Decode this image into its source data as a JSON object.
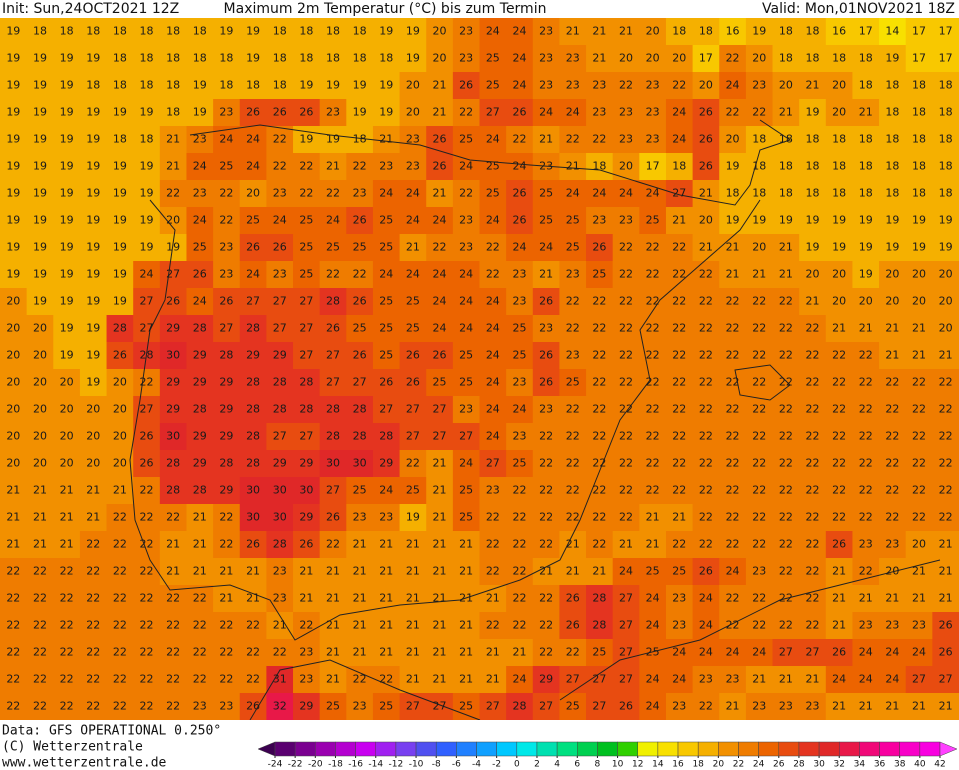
{
  "header": {
    "init": "Init: Sun,24OCT2021 12Z",
    "title": "Maximum 2m Temperatur (°C) bis zum Termin",
    "valid": "Valid: Mon,01NOV2021 18Z"
  },
  "footer": {
    "data": "Data: GFS OPERATIONAL 0.250°",
    "copyright": "(C) Wetterzentrale",
    "url": "www.wetterzentrale.de"
  },
  "map": {
    "rows": [
      [
        19,
        18,
        18,
        18,
        18,
        18,
        18,
        18,
        19,
        19,
        18,
        18,
        18,
        18,
        19,
        19,
        20,
        23,
        24,
        24,
        23,
        21,
        21,
        21,
        20,
        18,
        18,
        16,
        19,
        18,
        18,
        16,
        17,
        14,
        17,
        17
      ],
      [
        19,
        19,
        19,
        19,
        18,
        18,
        18,
        18,
        18,
        19,
        18,
        18,
        18,
        18,
        18,
        19,
        20,
        23,
        25,
        24,
        23,
        23,
        21,
        20,
        20,
        20,
        17,
        22,
        20,
        18,
        18,
        18,
        18,
        19,
        17,
        17
      ],
      [
        19,
        19,
        19,
        18,
        18,
        18,
        18,
        19,
        18,
        18,
        18,
        19,
        19,
        19,
        19,
        20,
        21,
        26,
        25,
        24,
        23,
        23,
        23,
        22,
        23,
        22,
        20,
        24,
        23,
        20,
        21,
        20,
        18,
        18,
        18,
        18
      ],
      [
        19,
        19,
        19,
        19,
        19,
        19,
        18,
        19,
        23,
        26,
        26,
        26,
        23,
        19,
        19,
        20,
        21,
        22,
        27,
        26,
        24,
        24,
        23,
        23,
        23,
        24,
        26,
        22,
        22,
        21,
        19,
        20,
        21,
        18,
        18,
        18
      ],
      [
        19,
        19,
        19,
        19,
        18,
        18,
        21,
        23,
        24,
        24,
        22,
        19,
        19,
        18,
        21,
        23,
        26,
        25,
        24,
        22,
        21,
        22,
        22,
        23,
        23,
        24,
        26,
        20,
        18,
        18,
        18,
        18,
        18,
        18,
        18,
        18
      ],
      [
        19,
        19,
        19,
        19,
        19,
        19,
        21,
        24,
        25,
        24,
        22,
        22,
        21,
        22,
        23,
        23,
        26,
        24,
        25,
        24,
        23,
        21,
        18,
        20,
        17,
        18,
        26,
        19,
        18,
        18,
        18,
        18,
        18,
        18,
        18,
        18
      ],
      [
        19,
        19,
        19,
        19,
        19,
        19,
        22,
        23,
        22,
        20,
        23,
        22,
        22,
        23,
        24,
        24,
        21,
        22,
        25,
        26,
        25,
        24,
        24,
        24,
        24,
        27,
        21,
        18,
        18,
        18,
        18,
        18,
        18,
        18,
        18,
        18
      ],
      [
        19,
        19,
        19,
        19,
        19,
        19,
        20,
        24,
        22,
        25,
        24,
        25,
        24,
        26,
        25,
        24,
        24,
        23,
        24,
        26,
        25,
        25,
        23,
        23,
        25,
        21,
        20,
        19,
        19,
        19,
        19,
        19,
        19,
        19,
        19,
        19
      ],
      [
        19,
        19,
        19,
        19,
        19,
        19,
        19,
        25,
        23,
        26,
        26,
        25,
        25,
        25,
        25,
        21,
        22,
        23,
        22,
        24,
        24,
        25,
        26,
        22,
        22,
        22,
        21,
        21,
        20,
        21,
        19,
        19,
        19,
        19,
        19,
        19
      ],
      [
        19,
        19,
        19,
        19,
        19,
        24,
        27,
        26,
        23,
        24,
        23,
        25,
        22,
        22,
        24,
        24,
        24,
        24,
        22,
        23,
        21,
        23,
        25,
        22,
        22,
        22,
        22,
        21,
        21,
        21,
        20,
        20,
        19,
        20,
        20,
        20
      ],
      [
        20,
        19,
        19,
        19,
        19,
        27,
        26,
        24,
        26,
        27,
        27,
        27,
        28,
        26,
        25,
        25,
        24,
        24,
        24,
        23,
        26,
        22,
        22,
        22,
        22,
        22,
        22,
        22,
        22,
        22,
        21,
        20,
        20,
        20,
        20,
        20
      ],
      [
        20,
        20,
        19,
        19,
        28,
        27,
        29,
        28,
        27,
        28,
        27,
        27,
        26,
        25,
        25,
        25,
        24,
        24,
        24,
        25,
        23,
        22,
        22,
        22,
        22,
        22,
        22,
        22,
        22,
        22,
        22,
        21,
        21,
        21,
        21,
        20
      ],
      [
        20,
        20,
        19,
        19,
        26,
        28,
        30,
        29,
        28,
        29,
        29,
        27,
        27,
        26,
        25,
        26,
        26,
        25,
        24,
        25,
        26,
        23,
        22,
        22,
        22,
        22,
        22,
        22,
        22,
        22,
        22,
        22,
        22,
        21,
        21,
        21
      ],
      [
        20,
        20,
        20,
        19,
        20,
        22,
        29,
        29,
        29,
        28,
        28,
        28,
        27,
        27,
        26,
        26,
        25,
        25,
        24,
        23,
        26,
        25,
        22,
        22,
        22,
        22,
        22,
        22,
        22,
        22,
        22,
        22,
        22,
        22,
        22,
        22
      ],
      [
        20,
        20,
        20,
        20,
        20,
        27,
        29,
        28,
        29,
        28,
        28,
        28,
        28,
        28,
        27,
        27,
        27,
        23,
        24,
        24,
        23,
        22,
        22,
        22,
        22,
        22,
        22,
        22,
        22,
        22,
        22,
        22,
        22,
        22,
        22,
        22
      ],
      [
        20,
        20,
        20,
        20,
        20,
        26,
        30,
        29,
        29,
        28,
        27,
        27,
        28,
        28,
        28,
        27,
        27,
        27,
        24,
        23,
        22,
        22,
        22,
        22,
        22,
        22,
        22,
        22,
        22,
        22,
        22,
        22,
        22,
        22,
        22,
        22
      ],
      [
        20,
        20,
        20,
        20,
        20,
        26,
        28,
        29,
        28,
        28,
        29,
        29,
        30,
        30,
        29,
        22,
        21,
        24,
        27,
        25,
        22,
        22,
        22,
        22,
        22,
        22,
        22,
        22,
        22,
        22,
        22,
        22,
        22,
        22,
        22,
        22
      ],
      [
        21,
        21,
        21,
        21,
        21,
        22,
        28,
        28,
        29,
        30,
        30,
        30,
        27,
        25,
        24,
        25,
        21,
        25,
        23,
        22,
        22,
        22,
        22,
        22,
        22,
        22,
        22,
        22,
        22,
        22,
        22,
        22,
        22,
        22,
        22,
        22
      ],
      [
        21,
        21,
        21,
        21,
        22,
        22,
        22,
        21,
        22,
        30,
        30,
        29,
        26,
        23,
        23,
        19,
        21,
        25,
        22,
        22,
        22,
        22,
        22,
        22,
        21,
        21,
        22,
        22,
        22,
        22,
        22,
        22,
        22,
        22,
        22,
        22
      ],
      [
        21,
        21,
        21,
        22,
        22,
        22,
        21,
        21,
        22,
        26,
        28,
        26,
        22,
        21,
        21,
        21,
        21,
        21,
        22,
        22,
        22,
        21,
        22,
        21,
        21,
        22,
        22,
        22,
        22,
        22,
        22,
        26,
        23,
        23,
        20,
        21
      ],
      [
        22,
        22,
        22,
        22,
        22,
        22,
        21,
        21,
        21,
        21,
        23,
        21,
        21,
        21,
        21,
        21,
        21,
        21,
        22,
        22,
        21,
        21,
        21,
        24,
        25,
        25,
        26,
        24,
        23,
        22,
        22,
        21,
        22,
        20,
        21,
        21
      ],
      [
        22,
        22,
        22,
        22,
        22,
        22,
        22,
        22,
        21,
        21,
        23,
        21,
        21,
        21,
        21,
        21,
        21,
        21,
        21,
        22,
        22,
        26,
        28,
        27,
        24,
        23,
        24,
        22,
        22,
        22,
        22,
        21,
        21,
        21,
        21,
        21
      ],
      [
        22,
        22,
        22,
        22,
        22,
        22,
        22,
        22,
        22,
        22,
        21,
        22,
        21,
        21,
        21,
        21,
        21,
        21,
        22,
        22,
        22,
        26,
        28,
        27,
        24,
        23,
        24,
        22,
        22,
        22,
        22,
        21,
        23,
        23,
        23,
        26
      ],
      [
        22,
        22,
        22,
        22,
        22,
        22,
        22,
        22,
        22,
        22,
        22,
        23,
        21,
        21,
        21,
        21,
        21,
        21,
        21,
        21,
        22,
        22,
        25,
        27,
        25,
        24,
        24,
        24,
        24,
        27,
        27,
        26,
        24,
        24,
        24,
        26
      ],
      [
        22,
        22,
        22,
        22,
        22,
        22,
        22,
        22,
        22,
        22,
        31,
        23,
        21,
        22,
        22,
        21,
        21,
        21,
        21,
        24,
        29,
        27,
        27,
        27,
        24,
        24,
        23,
        23,
        21,
        21,
        21,
        24,
        24,
        24,
        27,
        27
      ],
      [
        22,
        22,
        22,
        22,
        22,
        22,
        22,
        23,
        23,
        26,
        32,
        29,
        25,
        23,
        25,
        27,
        27,
        25,
        27,
        28,
        27,
        25,
        27,
        26,
        24,
        23,
        22,
        21,
        23,
        23,
        23,
        21,
        21,
        21,
        21,
        21
      ]
    ]
  },
  "colorbar": {
    "ticks": [
      -24,
      -22,
      -20,
      -18,
      -16,
      -14,
      -12,
      -10,
      -8,
      -6,
      -4,
      -2,
      0,
      2,
      4,
      6,
      8,
      10,
      12,
      14,
      16,
      18,
      20,
      22,
      24,
      26,
      28,
      30,
      32,
      34,
      36,
      38,
      40,
      42
    ],
    "colors": [
      "#3c0050",
      "#5a0070",
      "#7a0090",
      "#9a00b0",
      "#b400d0",
      "#c800f0",
      "#a020f0",
      "#7840f0",
      "#5050f0",
      "#3060ff",
      "#2080ff",
      "#10a0ff",
      "#00c8ff",
      "#00e8e8",
      "#00e0b0",
      "#00e080",
      "#00d050",
      "#00c020",
      "#30d000",
      "#f0f000",
      "#f8e000",
      "#f8c800",
      "#f5b000",
      "#f29000",
      "#ef7c00",
      "#ec6400",
      "#e84c10",
      "#e43420",
      "#e02828",
      "#e81848",
      "#f00878",
      "#f800a0",
      "#f800c8",
      "#f800e0",
      "#ff40ff"
    ]
  }
}
